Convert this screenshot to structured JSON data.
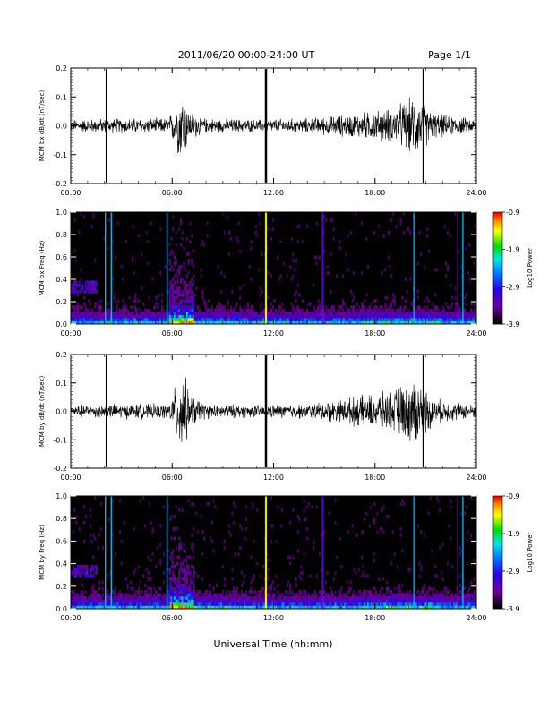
{
  "header": {
    "title": "2011/06/20  00:00-24:00 UT",
    "page": "Page 1/1"
  },
  "xlabel": "Universal Time (hh:mm)",
  "colors": {
    "background": "#ffffff",
    "trace": "#000000",
    "spectrogram_bg": "#000000"
  },
  "colorbar": {
    "label": "Log10 Power",
    "ticks": [
      "-0.9",
      "-1.9",
      "-2.9",
      "-3.9"
    ],
    "range": [
      -3.9,
      -0.9
    ],
    "colormap": "rainbow (black-purple-blue-cyan-green-yellow-red)"
  },
  "chart_data": [
    {
      "type": "line",
      "ylabel": "MCM bx dB/dt (nT/sec)",
      "x_ticks": [
        "00:00",
        "06:00",
        "12:00",
        "18:00",
        "24:00"
      ],
      "xlim": [
        0,
        24
      ],
      "y_ticks": [
        "0.2",
        "0.1",
        "0.0",
        "-0.1",
        "-0.2"
      ],
      "ylim": [
        -0.2,
        0.2
      ],
      "spikes_hours": [
        2.1,
        11.55,
        20.85
      ],
      "envelope": [
        [
          0,
          0.025
        ],
        [
          3,
          0.03
        ],
        [
          5.8,
          0.03
        ],
        [
          6.3,
          0.1
        ],
        [
          6.6,
          0.15
        ],
        [
          7,
          0.06
        ],
        [
          8,
          0.03
        ],
        [
          11,
          0.025
        ],
        [
          14,
          0.03
        ],
        [
          17,
          0.05
        ],
        [
          19,
          0.07
        ],
        [
          20.4,
          0.12
        ],
        [
          21.5,
          0.05
        ],
        [
          24,
          0.025
        ]
      ]
    },
    {
      "type": "heatmap",
      "ylabel": "MCM bx Freq (Hz)",
      "x_ticks": [
        "00:00",
        "06:00",
        "12:00",
        "18:00",
        "24:00"
      ],
      "xlim": [
        0,
        24
      ],
      "y_ticks": [
        "1.0",
        "0.8",
        "0.6",
        "0.4",
        "0.2",
        "0.0"
      ],
      "ylim": [
        0,
        1
      ],
      "vertical_lines_hours": [
        2.05,
        2.4,
        5.7,
        11.55,
        14.9,
        20.3,
        22.9,
        23.2
      ],
      "zrange": [
        -3.9,
        -0.9
      ]
    },
    {
      "type": "line",
      "ylabel": "MCM by dB/dt (nT/sec)",
      "x_ticks": [
        "00:00",
        "06:00",
        "12:00",
        "18:00",
        "24:00"
      ],
      "xlim": [
        0,
        24
      ],
      "y_ticks": [
        "0.2",
        "0.1",
        "0.0",
        "-0.1",
        "-0.2"
      ],
      "ylim": [
        -0.2,
        0.2
      ],
      "spikes_hours": [
        2.1,
        11.55,
        20.85
      ],
      "envelope": [
        [
          0,
          0.025
        ],
        [
          3,
          0.03
        ],
        [
          5.8,
          0.03
        ],
        [
          6.3,
          0.12
        ],
        [
          6.6,
          0.19
        ],
        [
          7,
          0.07
        ],
        [
          8,
          0.03
        ],
        [
          11,
          0.025
        ],
        [
          14,
          0.03
        ],
        [
          17,
          0.06
        ],
        [
          19,
          0.08
        ],
        [
          20.4,
          0.14
        ],
        [
          21.5,
          0.05
        ],
        [
          24,
          0.025
        ]
      ]
    },
    {
      "type": "heatmap",
      "ylabel": "MCM by Freq (Hz)",
      "x_ticks": [
        "00:00",
        "06:00",
        "12:00",
        "18:00",
        "24:00"
      ],
      "xlim": [
        0,
        24
      ],
      "y_ticks": [
        "1.0",
        "0.8",
        "0.6",
        "0.4",
        "0.2",
        "0.0"
      ],
      "ylim": [
        0,
        1
      ],
      "vertical_lines_hours": [
        2.05,
        2.4,
        5.7,
        11.55,
        14.9,
        20.3,
        22.9,
        23.2
      ],
      "zrange": [
        -3.9,
        -0.9
      ]
    }
  ]
}
